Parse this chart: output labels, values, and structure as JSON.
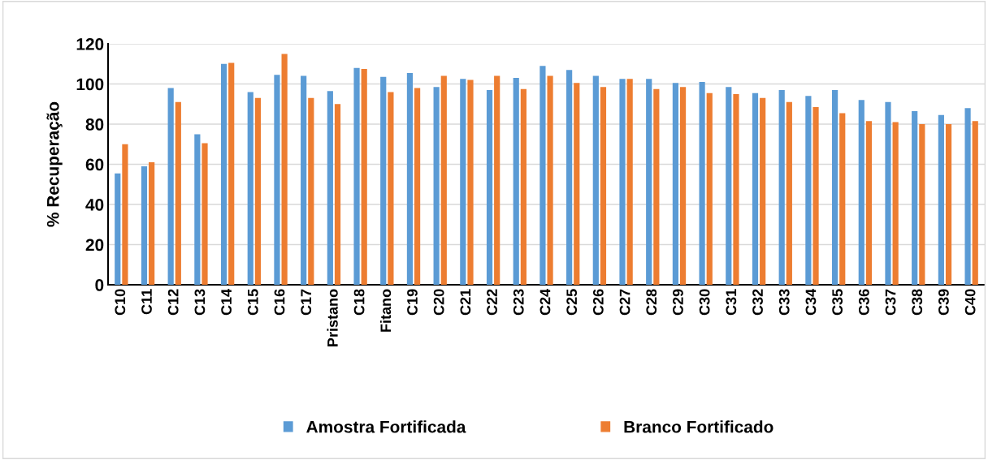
{
  "chart_data": {
    "type": "bar",
    "ylabel": "% Recuperação",
    "categories": [
      "C10",
      "C11",
      "C12",
      "C13",
      "C14",
      "C15",
      "C16",
      "C17",
      "Pristano",
      "C18",
      "Fitano",
      "C19",
      "C20",
      "C21",
      "C22",
      "C23",
      "C24",
      "C25",
      "C26",
      "C27",
      "C28",
      "C29",
      "C30",
      "C31",
      "C32",
      "C33",
      "C34",
      "C35",
      "C36",
      "C37",
      "C38",
      "C39",
      "C40"
    ],
    "series": [
      {
        "name": "Amostra Fortificada",
        "color": "#5b9bd5",
        "values": [
          55.5,
          59,
          98,
          75,
          110,
          96,
          104.5,
          104,
          96.5,
          108,
          103.5,
          105.5,
          98.5,
          102.5,
          97,
          103,
          109,
          107,
          104,
          102.5,
          102.5,
          100.5,
          101,
          98.5,
          95.5,
          97,
          94,
          97,
          92,
          91,
          86.5,
          84.5,
          88
        ]
      },
      {
        "name": "Branco Fortificado",
        "color": "#ed7d31",
        "values": [
          70,
          61,
          91,
          70.5,
          110.5,
          93,
          115,
          93,
          90,
          107.5,
          96,
          98,
          104,
          102,
          104,
          97.5,
          104,
          100.5,
          98.5,
          102.5,
          97.5,
          98.5,
          95.5,
          95,
          93,
          91,
          88.5,
          85.5,
          81.5,
          81,
          80,
          80,
          81.5
        ]
      }
    ],
    "ylim": [
      0,
      120
    ],
    "yticks": [
      0,
      20,
      40,
      60,
      80,
      100,
      120
    ],
    "grid": "y",
    "legend": "bottom"
  }
}
